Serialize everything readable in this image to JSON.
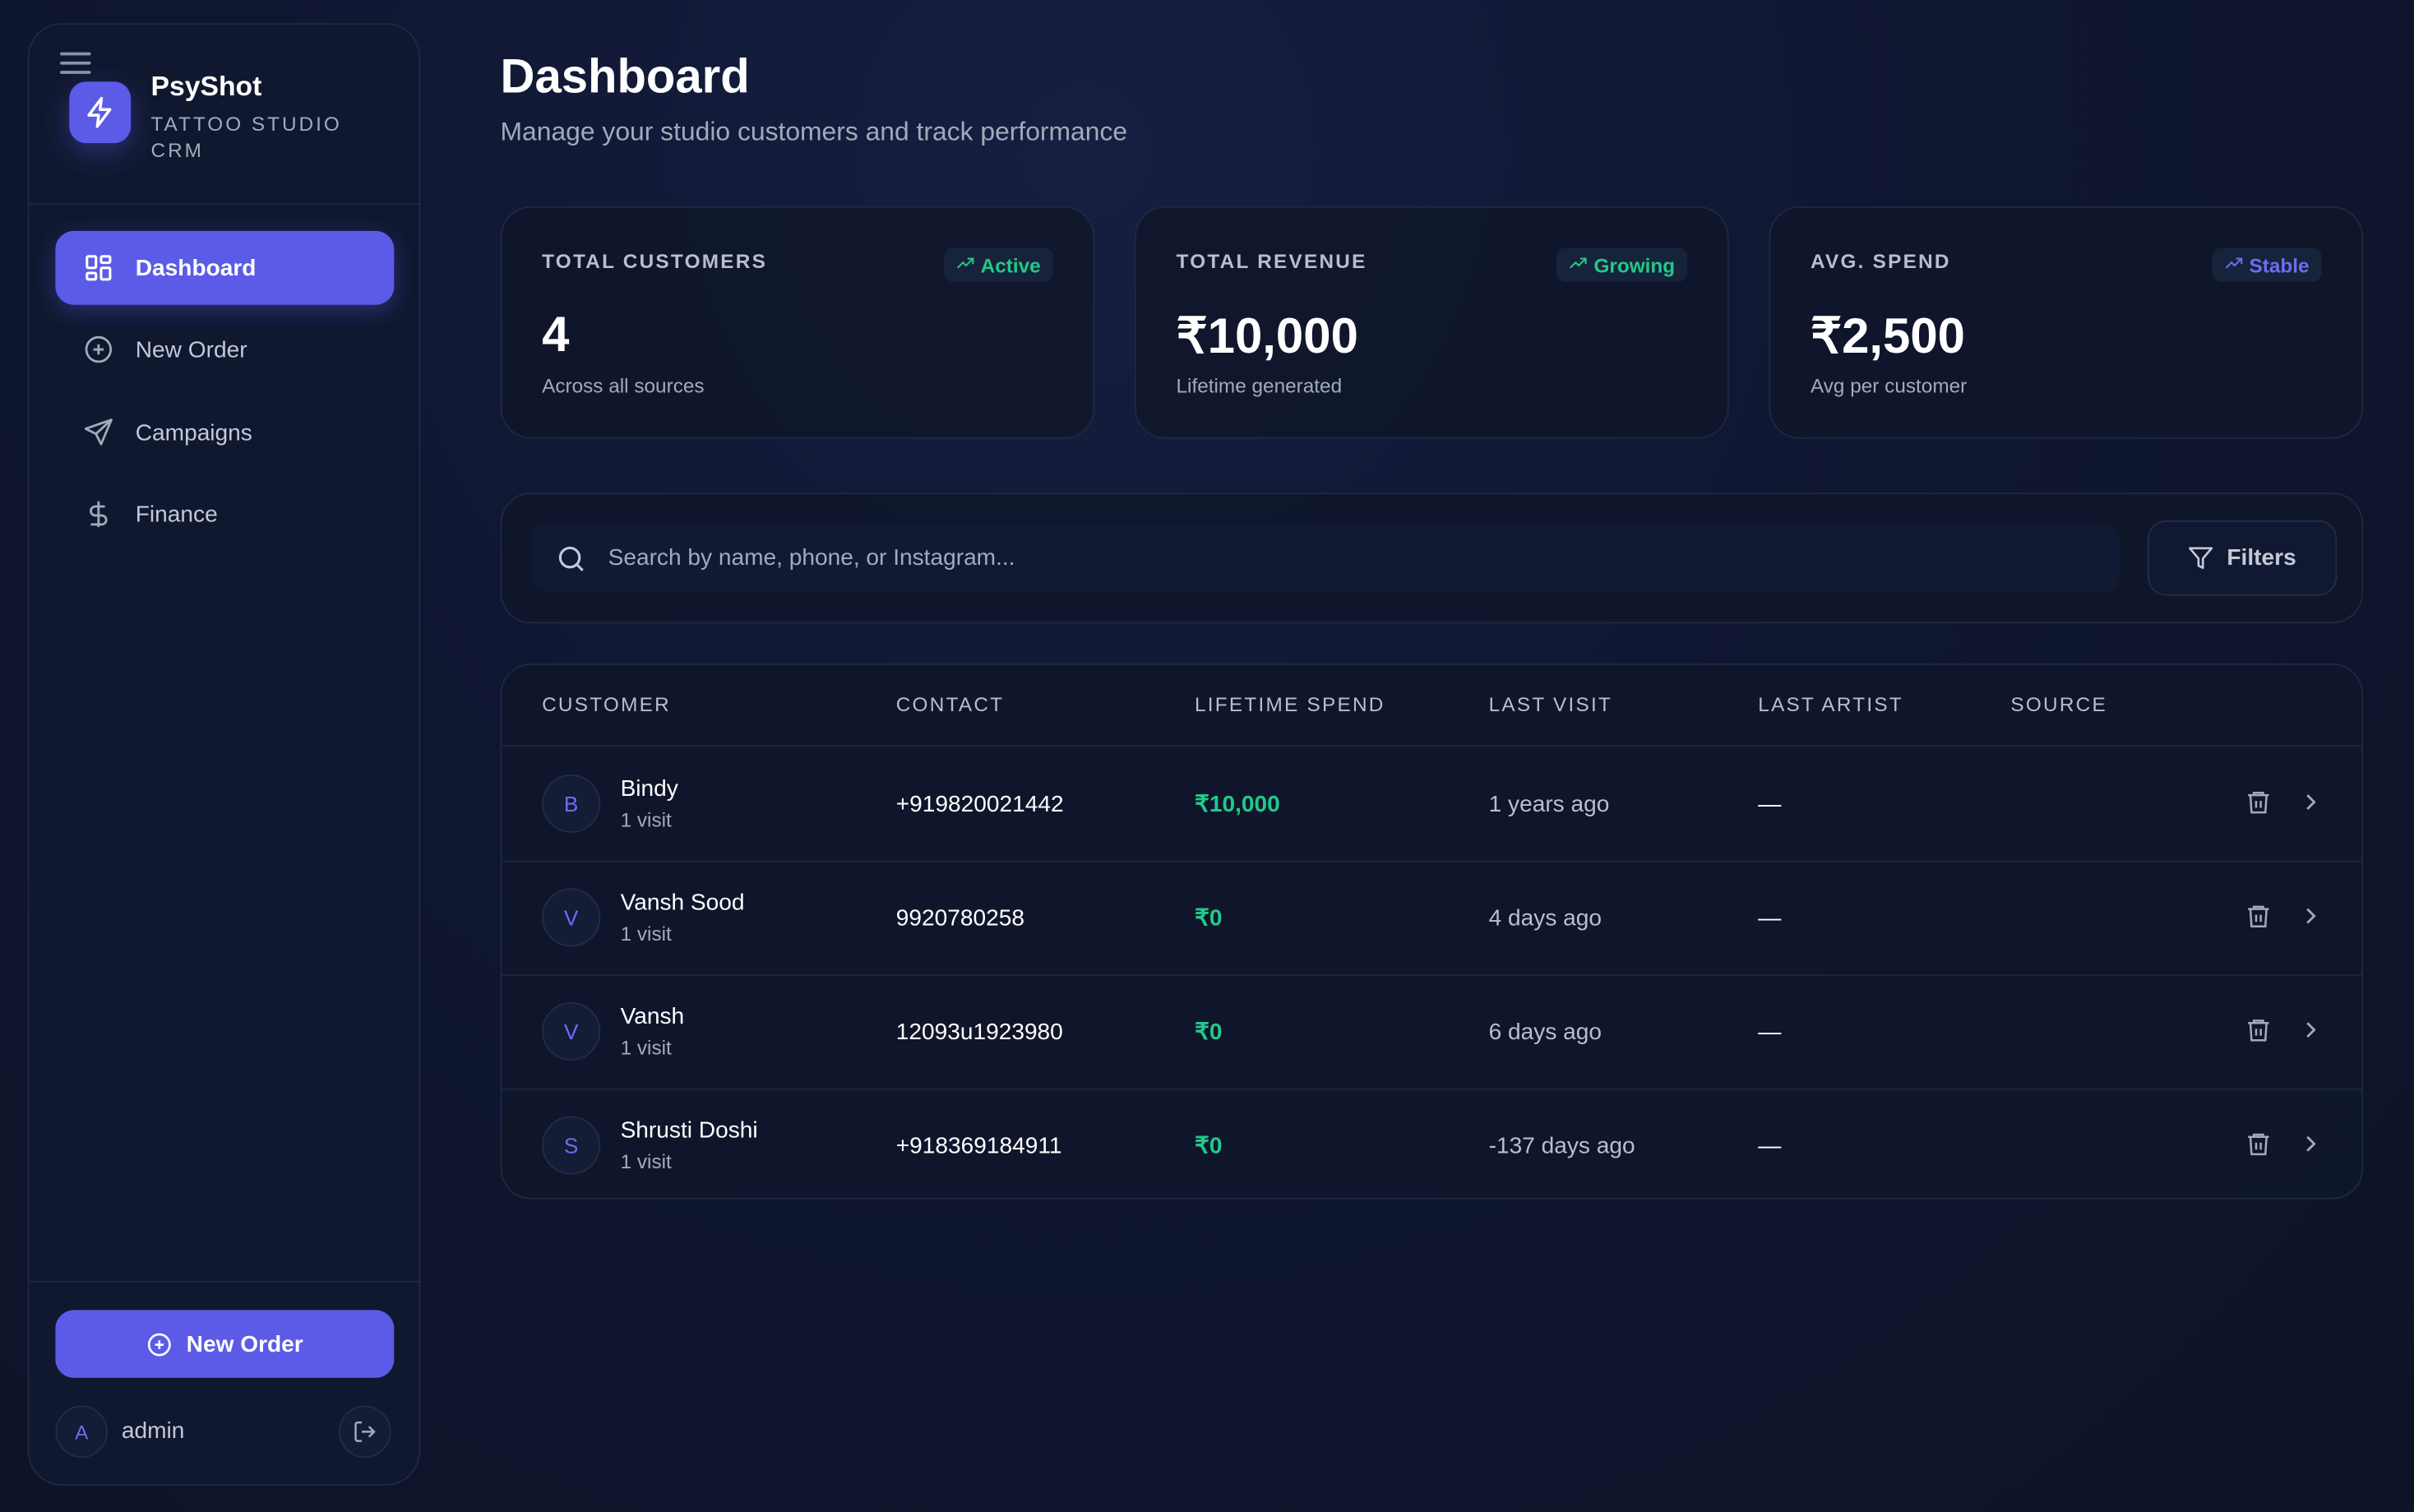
{
  "colors": {
    "accent": "#5b5be8",
    "success": "#22c98a",
    "background": "#0e1428"
  },
  "sidebar": {
    "brand": "PsyShot",
    "tagline": "TATTOO STUDIO CRM",
    "items": [
      {
        "label": "Dashboard",
        "icon": "layout-grid-icon",
        "active": true
      },
      {
        "label": "New Order",
        "icon": "plus-circle-icon"
      },
      {
        "label": "Campaigns",
        "icon": "send-icon"
      },
      {
        "label": "Finance",
        "icon": "dollar-icon"
      }
    ],
    "new_order_label": "New Order",
    "user": {
      "initial": "A",
      "name": "admin"
    }
  },
  "header": {
    "title": "Dashboard",
    "subtitle": "Manage your studio customers and track performance"
  },
  "stats": [
    {
      "label": "TOTAL CUSTOMERS",
      "badge": "Active",
      "badge_color": "#22c98a",
      "value": "4",
      "sub": "Across all sources"
    },
    {
      "label": "TOTAL REVENUE",
      "badge": "Growing",
      "badge_color": "#22c98a",
      "value": "₹10,000",
      "sub": "Lifetime generated"
    },
    {
      "label": "AVG. SPEND",
      "badge": "Stable",
      "badge_color": "#6d6df0",
      "value": "₹2,500",
      "sub": "Avg per customer"
    }
  ],
  "search": {
    "placeholder": "Search by name, phone, or Instagram...",
    "value": "",
    "filters_label": "Filters"
  },
  "table": {
    "columns": [
      "CUSTOMER",
      "CONTACT",
      "LIFETIME SPEND",
      "LAST VISIT",
      "LAST ARTIST",
      "SOURCE"
    ],
    "rows": [
      {
        "initial": "B",
        "name": "Bindy",
        "visits": "1 visit",
        "contact": "+919820021442",
        "spend": "₹10,000",
        "last_visit": "1 years ago",
        "artist": "—",
        "source": ""
      },
      {
        "initial": "V",
        "name": "Vansh Sood",
        "visits": "1 visit",
        "contact": "9920780258",
        "spend": "₹0",
        "last_visit": "4 days ago",
        "artist": "—",
        "source": ""
      },
      {
        "initial": "V",
        "name": "Vansh",
        "visits": "1 visit",
        "contact": "12093u1923980",
        "spend": "₹0",
        "last_visit": "6 days ago",
        "artist": "—",
        "source": ""
      },
      {
        "initial": "S",
        "name": "Shrusti Doshi",
        "visits": "1 visit",
        "contact": "+918369184911",
        "spend": "₹0",
        "last_visit": "-137 days ago",
        "artist": "—",
        "source": ""
      }
    ]
  }
}
